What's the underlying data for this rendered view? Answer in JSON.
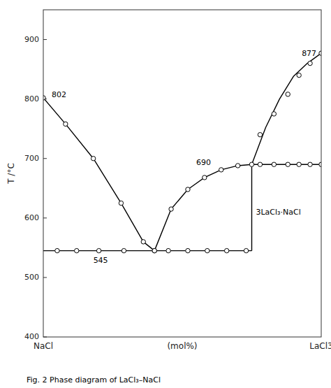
{
  "chart_data": {
    "type": "line",
    "xlabel": "(mol%)",
    "ylabel": "T /°C",
    "caption": "Fig. 2  Phase diagram of LaCl₃–NaCl",
    "xlim": [
      0,
      100
    ],
    "ylim": [
      400,
      950
    ],
    "xticks": [
      {
        "value": 0,
        "label": "NaCl"
      },
      {
        "value": 100,
        "label": "LaCl3"
      }
    ],
    "yticks": [
      400,
      500,
      600,
      700,
      800,
      900
    ],
    "grid": false,
    "annotations": [
      {
        "text": "802",
        "x": 3,
        "y": 812
      },
      {
        "text": "545",
        "x": 18,
        "y": 534
      },
      {
        "text": "690",
        "x": 55,
        "y": 698
      },
      {
        "text": "877",
        "x": 93,
        "y": 882
      },
      {
        "text": "3LaCl₃·NaCl",
        "x": 76.5,
        "y": 615
      }
    ],
    "series": [
      {
        "type": "line",
        "color": "#000000",
        "x": [
          0,
          8,
          18,
          28,
          36,
          40
        ],
        "values": [
          802,
          758,
          700,
          625,
          560,
          545
        ]
      },
      {
        "type": "line",
        "color": "#000000",
        "x": [
          40,
          46,
          52,
          58,
          64,
          70,
          75
        ],
        "values": [
          545,
          615,
          648,
          668,
          681,
          688,
          690
        ]
      },
      {
        "type": "line",
        "color": "#000000",
        "x": [
          75,
          80,
          85,
          90,
          95,
          100
        ],
        "values": [
          690,
          752,
          800,
          838,
          860,
          877
        ]
      },
      {
        "type": "line",
        "color": "#000000",
        "x": [
          0,
          40
        ],
        "values": [
          545,
          545
        ]
      },
      {
        "type": "line",
        "color": "#000000",
        "x": [
          40,
          75
        ],
        "values": [
          545,
          545
        ]
      },
      {
        "type": "line",
        "color": "#000000",
        "x": [
          75,
          75
        ],
        "values": [
          545,
          690
        ]
      },
      {
        "type": "line",
        "color": "#000000",
        "x": [
          75,
          100
        ],
        "values": [
          690,
          690
        ]
      },
      {
        "type": "scatter",
        "color": "#000000",
        "x": [
          0,
          8,
          18,
          28,
          36,
          40
        ],
        "values": [
          802,
          758,
          700,
          625,
          560,
          545
        ]
      },
      {
        "type": "scatter",
        "color": "#000000",
        "x": [
          5,
          12,
          20,
          29
        ],
        "values": [
          545,
          545,
          545,
          545
        ]
      },
      {
        "type": "scatter",
        "color": "#000000",
        "x": [
          40,
          46,
          52,
          58,
          64,
          70,
          75
        ],
        "values": [
          545,
          615,
          648,
          668,
          681,
          688,
          690
        ]
      },
      {
        "type": "scatter",
        "color": "#000000",
        "x": [
          45,
          52,
          59,
          66,
          73
        ],
        "values": [
          545,
          545,
          545,
          545,
          545
        ]
      },
      {
        "type": "scatter",
        "color": "#000000",
        "x": [
          78,
          83,
          88,
          92,
          96,
          100
        ],
        "values": [
          690,
          690,
          690,
          690,
          690,
          690
        ]
      },
      {
        "type": "scatter",
        "color": "#000000",
        "x": [
          78,
          83,
          88,
          92,
          96,
          100
        ],
        "values": [
          740,
          775,
          808,
          840,
          860,
          877
        ]
      }
    ]
  }
}
